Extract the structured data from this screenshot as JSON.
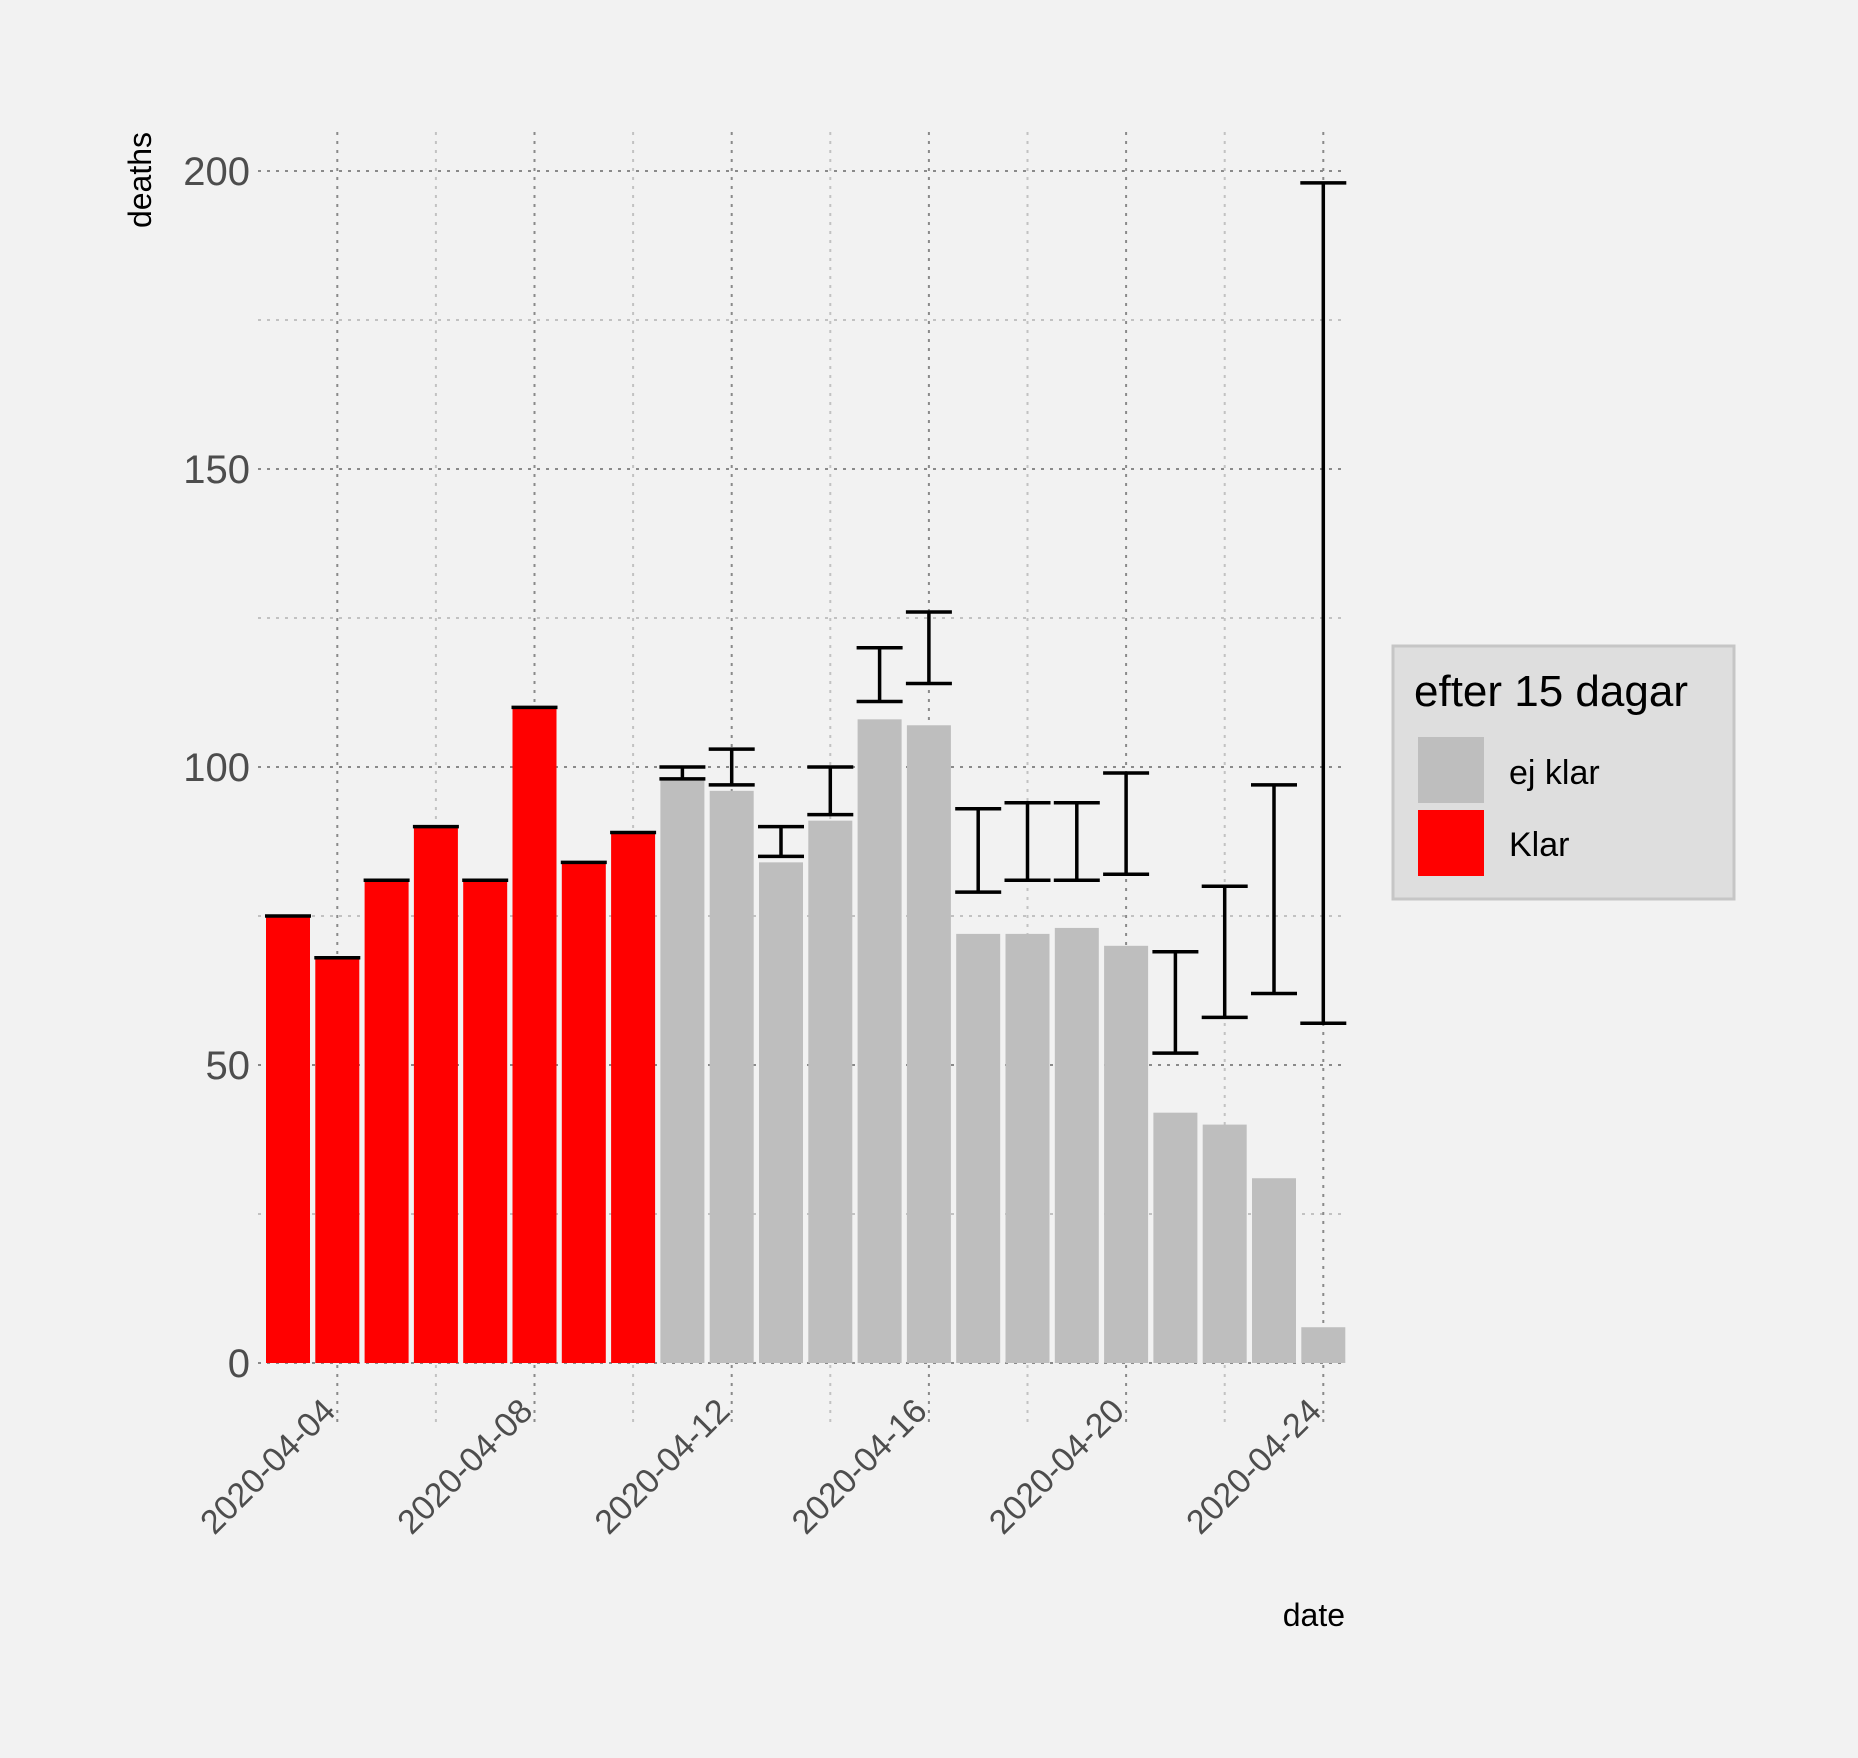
{
  "chart_data": {
    "type": "bar",
    "xlabel": "date",
    "ylabel": "deaths",
    "ylim": [
      0,
      200
    ],
    "y_ticks": [
      0,
      50,
      100,
      150,
      200
    ],
    "x_ticks": [
      "2020-04-04",
      "2020-04-08",
      "2020-04-12",
      "2020-04-16",
      "2020-04-20",
      "2020-04-24"
    ],
    "grid": true,
    "legend_position": "right",
    "legend": {
      "title": "efter 15 dagar",
      "entries": [
        {
          "label": "ej klar",
          "color": "#bebebe"
        },
        {
          "label": "Klar",
          "color": "#ff0000"
        }
      ]
    },
    "colors": {
      "Klar": "#ff0000",
      "ej klar": "#bebebe",
      "errorbar": "#000000"
    },
    "bars": [
      {
        "date": "2020-04-03",
        "value": 75,
        "status": "Klar",
        "lower": 75,
        "upper": 75
      },
      {
        "date": "2020-04-04",
        "value": 68,
        "status": "Klar",
        "lower": 68,
        "upper": 68
      },
      {
        "date": "2020-04-05",
        "value": 81,
        "status": "Klar",
        "lower": 81,
        "upper": 81
      },
      {
        "date": "2020-04-06",
        "value": 90,
        "status": "Klar",
        "lower": 90,
        "upper": 90
      },
      {
        "date": "2020-04-07",
        "value": 81,
        "status": "Klar",
        "lower": 81,
        "upper": 81
      },
      {
        "date": "2020-04-08",
        "value": 110,
        "status": "Klar",
        "lower": 110,
        "upper": 110
      },
      {
        "date": "2020-04-09",
        "value": 84,
        "status": "Klar",
        "lower": 84,
        "upper": 84
      },
      {
        "date": "2020-04-10",
        "value": 89,
        "status": "Klar",
        "lower": 89,
        "upper": 89
      },
      {
        "date": "2020-04-11",
        "value": 98,
        "status": "ej klar",
        "lower": 98,
        "upper": 100
      },
      {
        "date": "2020-04-12",
        "value": 96,
        "status": "ej klar",
        "lower": 97,
        "upper": 103
      },
      {
        "date": "2020-04-13",
        "value": 84,
        "status": "ej klar",
        "lower": 85,
        "upper": 90
      },
      {
        "date": "2020-04-14",
        "value": 91,
        "status": "ej klar",
        "lower": 92,
        "upper": 100
      },
      {
        "date": "2020-04-15",
        "value": 108,
        "status": "ej klar",
        "lower": 111,
        "upper": 120
      },
      {
        "date": "2020-04-16",
        "value": 107,
        "status": "ej klar",
        "lower": 114,
        "upper": 126
      },
      {
        "date": "2020-04-17",
        "value": 72,
        "status": "ej klar",
        "lower": 79,
        "upper": 93
      },
      {
        "date": "2020-04-18",
        "value": 72,
        "status": "ej klar",
        "lower": 81,
        "upper": 94
      },
      {
        "date": "2020-04-19",
        "value": 73,
        "status": "ej klar",
        "lower": 81,
        "upper": 94
      },
      {
        "date": "2020-04-20",
        "value": 70,
        "status": "ej klar",
        "lower": 82,
        "upper": 99
      },
      {
        "date": "2020-04-21",
        "value": 42,
        "status": "ej klar",
        "lower": 52,
        "upper": 69
      },
      {
        "date": "2020-04-22",
        "value": 40,
        "status": "ej klar",
        "lower": 58,
        "upper": 80
      },
      {
        "date": "2020-04-23",
        "value": 31,
        "status": "ej klar",
        "lower": 62,
        "upper": 97
      },
      {
        "date": "2020-04-24",
        "value": 6,
        "status": "ej klar",
        "lower": 57,
        "upper": 198
      }
    ]
  }
}
